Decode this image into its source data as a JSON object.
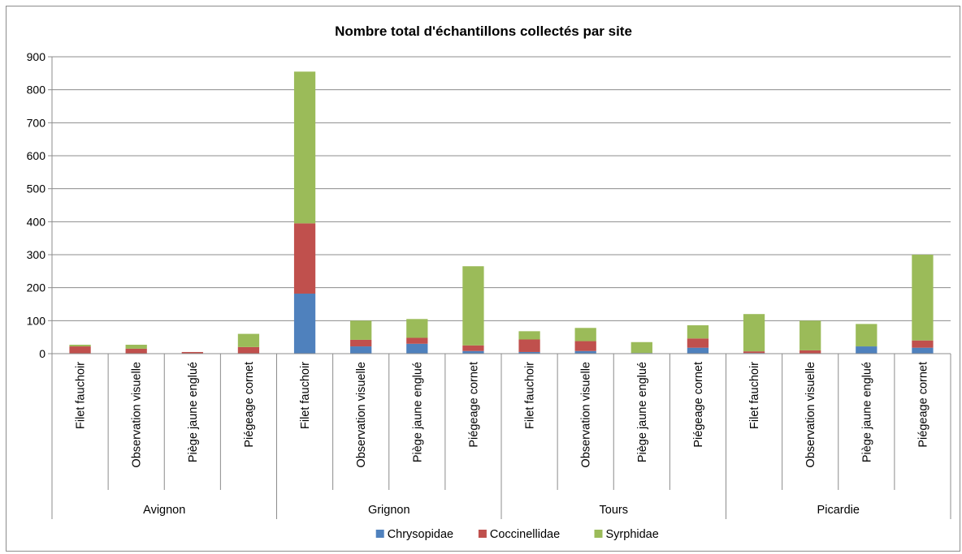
{
  "chart_data": {
    "type": "bar",
    "stacked": true,
    "title": "Nombre total d'échantillons collectés par site",
    "xlabel": "",
    "ylabel": "",
    "ylim": [
      0,
      900
    ],
    "yticks": [
      0,
      100,
      200,
      300,
      400,
      500,
      600,
      700,
      800,
      900
    ],
    "grid": true,
    "legend_position": "bottom",
    "groups": [
      {
        "name": "Avignon",
        "categories": [
          "Filet fauchoir",
          "Observation visuelle",
          "Piège jaune englué",
          "Piégeage cornet"
        ]
      },
      {
        "name": "Grignon",
        "categories": [
          "Filet fauchoir",
          "Observation visuelle",
          "Piège jaune englué",
          "Piégeage cornet"
        ]
      },
      {
        "name": "Tours",
        "categories": [
          "Filet fauchoir",
          "Observation visuelle",
          "Piège jaune englué",
          "Piégeage cornet"
        ]
      },
      {
        "name": "Picardie",
        "categories": [
          "Filet fauchoir",
          "Observation visuelle",
          "Piège jaune englué",
          "Piégeage cornet"
        ]
      }
    ],
    "series": [
      {
        "name": "Chrysopidae",
        "color": "#4f81bd",
        "values": [
          0,
          0,
          0,
          0,
          182,
          22,
          30,
          8,
          5,
          8,
          2,
          18,
          2,
          0,
          22,
          18
        ]
      },
      {
        "name": "Coccinellidae",
        "color": "#c0504d",
        "values": [
          22,
          15,
          5,
          20,
          213,
          20,
          18,
          17,
          38,
          30,
          0,
          28,
          5,
          10,
          0,
          22
        ]
      },
      {
        "name": "Syrphidae",
        "color": "#9bbb59",
        "values": [
          5,
          12,
          0,
          40,
          460,
          58,
          57,
          240,
          25,
          40,
          33,
          40,
          113,
          90,
          68,
          260
        ]
      }
    ]
  }
}
